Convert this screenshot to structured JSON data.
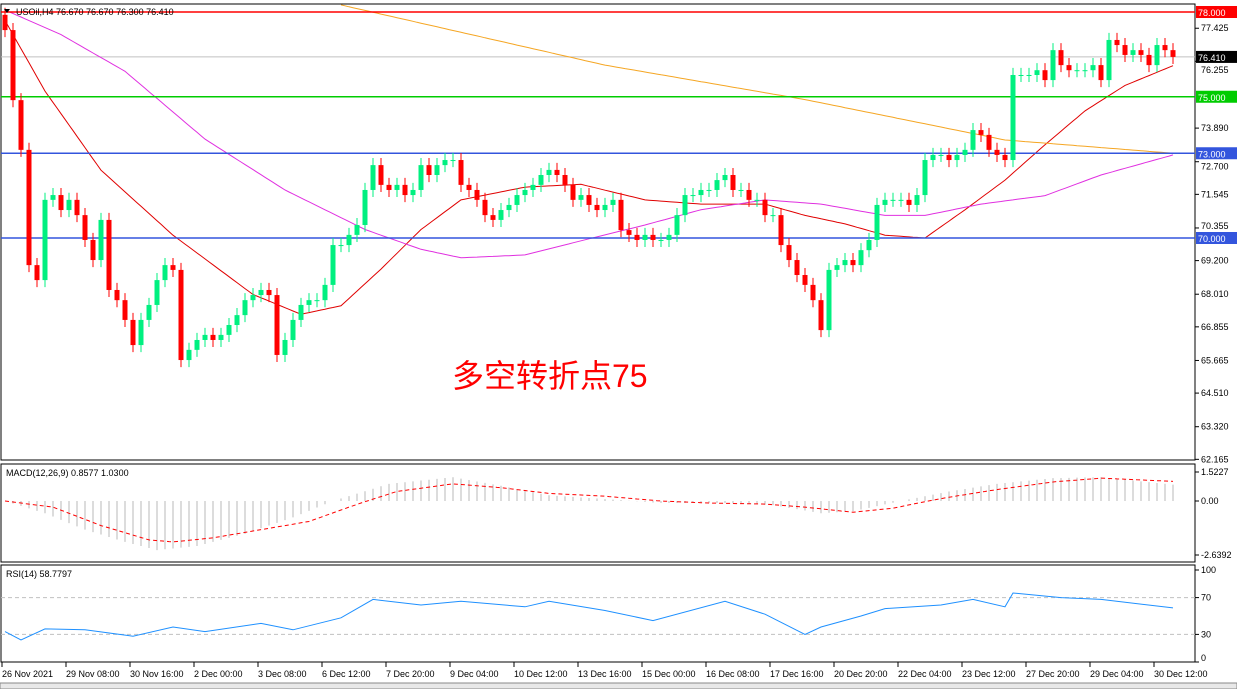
{
  "header": {
    "symbol_label": "USOil,H4  76.670 76.670 76.300 76.410"
  },
  "annotation": "多空转折点75",
  "colors": {
    "bull": "#00f080",
    "bear": "#ff0000",
    "ma_fast": "#e00000",
    "ma_mid": "#e030e0",
    "ma_slow": "#f5a623",
    "level_78": "#ff0000",
    "level_75": "#00cc00",
    "level_73": "#3355dd",
    "level_70": "#3355dd",
    "macd_signal": "#ff0000",
    "macd_hist": "#b8b8b8",
    "rsi": "#1e90ff"
  },
  "chart_data": [
    {
      "type": "candlestick",
      "title": "USOil,H4",
      "ohlc_last": {
        "open": 76.67,
        "high": 76.67,
        "low": 76.3,
        "close": 76.41
      },
      "ylim": [
        62.165,
        78.4
      ],
      "y_ticks": [
        "77.425",
        "76.255",
        "73.890",
        "72.700",
        "71.545",
        "70.355",
        "69.200",
        "68.010",
        "66.855",
        "65.665",
        "64.510",
        "63.320",
        "62.165"
      ],
      "y_tick_values": [
        77.425,
        76.255,
        73.89,
        72.7,
        71.545,
        70.355,
        69.2,
        68.01,
        66.855,
        65.665,
        64.51,
        63.32,
        62.165
      ],
      "price_tag": {
        "label": "76.410",
        "value": 76.41
      },
      "levels": [
        {
          "label": "78.000",
          "value": 78.0,
          "color_key": "level_78"
        },
        {
          "label": "75.000",
          "value": 75.0,
          "color_key": "level_75"
        },
        {
          "label": "73.000",
          "value": 73.0,
          "color_key": "level_73"
        },
        {
          "label": "70.000",
          "value": 70.0,
          "color_key": "level_70"
        }
      ],
      "closes": [
        77.36,
        74.88,
        73.12,
        69.04,
        68.51,
        71.35,
        71.52,
        70.99,
        71.35,
        70.81,
        69.93,
        69.22,
        70.64,
        68.16,
        67.8,
        67.1,
        66.21,
        67.1,
        67.63,
        68.51,
        69.04,
        68.87,
        65.68,
        66.04,
        66.39,
        66.57,
        66.39,
        66.57,
        66.92,
        67.27,
        67.8,
        67.98,
        68.16,
        67.98,
        65.86,
        66.39,
        67.1,
        67.63,
        67.8,
        67.8,
        68.34,
        69.75,
        69.75,
        70.11,
        70.46,
        71.7,
        72.58,
        71.88,
        71.7,
        71.88,
        71.52,
        71.7,
        72.58,
        72.23,
        72.58,
        72.76,
        72.76,
        71.88,
        71.7,
        71.35,
        70.81,
        70.64,
        70.99,
        71.17,
        71.52,
        71.7,
        71.88,
        72.23,
        72.41,
        72.23,
        71.88,
        71.35,
        71.52,
        71.17,
        70.99,
        71.17,
        71.35,
        70.28,
        70.11,
        69.93,
        70.11,
        69.93,
        69.93,
        70.11,
        70.81,
        71.52,
        71.52,
        71.7,
        71.7,
        72.05,
        72.23,
        71.7,
        71.7,
        71.35,
        71.35,
        70.81,
        70.81,
        69.75,
        69.22,
        68.69,
        68.34,
        67.8,
        66.74,
        68.87,
        69.04,
        69.22,
        69.04,
        69.57,
        69.93,
        71.17,
        71.35,
        71.35,
        71.35,
        71.17,
        71.52,
        72.76,
        72.94,
        72.94,
        72.76,
        72.94,
        73.12,
        73.82,
        73.65,
        73.12,
        72.94,
        72.76,
        75.77,
        75.77,
        75.77,
        75.94,
        75.59,
        76.65,
        76.12,
        75.94,
        75.94,
        75.94,
        76.12,
        75.59,
        77.01,
        76.83,
        76.48,
        76.65,
        76.48,
        76.12,
        76.83,
        76.65,
        76.41
      ],
      "first_open": 77.9,
      "moving_averages": [
        {
          "color_key": "ma_fast",
          "points": [
            [
              0,
              77.7
            ],
            [
              5,
              75.2
            ],
            [
              12,
              72.4
            ],
            [
              21,
              70.1
            ],
            [
              31,
              68.0
            ],
            [
              37,
              67.3
            ],
            [
              42,
              67.6
            ],
            [
              47,
              68.9
            ],
            [
              52,
              70.3
            ],
            [
              57,
              71.35
            ],
            [
              65,
              71.8
            ],
            [
              72,
              71.9
            ],
            [
              80,
              71.35
            ],
            [
              87,
              71.2
            ],
            [
              95,
              71.2
            ],
            [
              100,
              70.8
            ],
            [
              105,
              70.5
            ],
            [
              110,
              70.1
            ],
            [
              115,
              70.0
            ],
            [
              120,
              71.0
            ],
            [
              125,
              72.05
            ],
            [
              130,
              73.3
            ],
            [
              135,
              74.5
            ],
            [
              140,
              75.4
            ],
            [
              146,
              76.1
            ]
          ]
        },
        {
          "color_key": "ma_mid",
          "points": [
            [
              0,
              78.07
            ],
            [
              7,
              77.2
            ],
            [
              15,
              75.9
            ],
            [
              25,
              73.5
            ],
            [
              35,
              71.7
            ],
            [
              45,
              70.3
            ],
            [
              52,
              69.6
            ],
            [
              57,
              69.3
            ],
            [
              65,
              69.4
            ],
            [
              72,
              69.9
            ],
            [
              80,
              70.46
            ],
            [
              87,
              71.0
            ],
            [
              95,
              71.35
            ],
            [
              102,
              71.2
            ],
            [
              110,
              70.8
            ],
            [
              115,
              70.8
            ],
            [
              122,
              71.2
            ],
            [
              130,
              71.5
            ],
            [
              137,
              72.23
            ],
            [
              146,
              72.94
            ]
          ]
        },
        {
          "color_key": "ma_slow",
          "points": [
            [
              42,
              78.25
            ],
            [
              75,
              76.12
            ],
            [
              100,
              74.9
            ],
            [
              125,
              73.47
            ],
            [
              146,
              73.0
            ]
          ]
        }
      ],
      "x_ticks": [
        "26 Nov 2021",
        "29 Nov 08:00",
        "30 Nov 16:00",
        "2 Dec 00:00",
        "3 Dec 08:00",
        "6 Dec 12:00",
        "7 Dec 20:00",
        "9 Dec 04:00",
        "10 Dec 12:00",
        "13 Dec 16:00",
        "15 Dec 00:00",
        "16 Dec 08:00",
        "17 Dec 16:00",
        "20 Dec 20:00",
        "22 Dec 04:00",
        "23 Dec 12:00",
        "27 Dec 20:00",
        "29 Dec 04:00",
        "30 Dec 12:00"
      ],
      "x_tick_bars": [
        0,
        8,
        16,
        24,
        32,
        40,
        48,
        56,
        64,
        72,
        80,
        88,
        96,
        104,
        112,
        120,
        128,
        136,
        144
      ]
    },
    {
      "type": "bar+line",
      "title": "MACD(12,26,9) 0.8577 1.0300",
      "ylim": [
        -2.6392,
        1.5227
      ],
      "y_ticks": [
        "1.5227",
        "0.00",
        "-2.6392"
      ],
      "y_tick_values": [
        1.5227,
        0,
        -2.6392
      ],
      "histogram_points": [
        [
          0,
          0
        ],
        [
          5,
          -0.6
        ],
        [
          10,
          -1.4
        ],
        [
          15,
          -2.0
        ],
        [
          19,
          -2.4
        ],
        [
          24,
          -2.2
        ],
        [
          30,
          -1.6
        ],
        [
          36,
          -0.8
        ],
        [
          41,
          0
        ],
        [
          48,
          0.9
        ],
        [
          56,
          1.25
        ],
        [
          62,
          0.8
        ],
        [
          68,
          0.3
        ],
        [
          75,
          0.1
        ],
        [
          82,
          -0.1
        ],
        [
          90,
          -0.1
        ],
        [
          96,
          -0.2
        ],
        [
          102,
          -0.6
        ],
        [
          106,
          -0.5
        ],
        [
          112,
          0
        ],
        [
          118,
          0.5
        ],
        [
          124,
          0.9
        ],
        [
          131,
          1.2
        ],
        [
          137,
          1.25
        ],
        [
          146,
          0.86
        ]
      ],
      "signal_points": [
        [
          0,
          0
        ],
        [
          6,
          -0.3
        ],
        [
          12,
          -1.2
        ],
        [
          18,
          -1.9
        ],
        [
          21,
          -2.0
        ],
        [
          26,
          -1.8
        ],
        [
          32,
          -1.4
        ],
        [
          38,
          -1.0
        ],
        [
          43,
          -0.3
        ],
        [
          49,
          0.5
        ],
        [
          56,
          0.9
        ],
        [
          62,
          0.7
        ],
        [
          68,
          0.4
        ],
        [
          75,
          0.25
        ],
        [
          82,
          0.0
        ],
        [
          88,
          -0.1
        ],
        [
          95,
          -0.15
        ],
        [
          100,
          -0.3
        ],
        [
          106,
          -0.55
        ],
        [
          111,
          -0.35
        ],
        [
          118,
          0.2
        ],
        [
          124,
          0.6
        ],
        [
          131,
          1.0
        ],
        [
          137,
          1.2
        ],
        [
          146,
          1.03
        ]
      ]
    },
    {
      "type": "line",
      "title": "RSI(14) 58.7797",
      "ylim": [
        0,
        100
      ],
      "y_ticks": [
        "100",
        "70",
        "30",
        "0"
      ],
      "y_tick_values": [
        100,
        70,
        30,
        0
      ],
      "levels": [
        70,
        30
      ],
      "points": [
        [
          0,
          33
        ],
        [
          2,
          24
        ],
        [
          5,
          36
        ],
        [
          10,
          35
        ],
        [
          16,
          28
        ],
        [
          21,
          38
        ],
        [
          25,
          33
        ],
        [
          32,
          42
        ],
        [
          36,
          35
        ],
        [
          42,
          48
        ],
        [
          46,
          68
        ],
        [
          52,
          62
        ],
        [
          57,
          66
        ],
        [
          65,
          60
        ],
        [
          68,
          66
        ],
        [
          75,
          56
        ],
        [
          81,
          45
        ],
        [
          90,
          66
        ],
        [
          95,
          52
        ],
        [
          100,
          30
        ],
        [
          102,
          38
        ],
        [
          107,
          50
        ],
        [
          110,
          58
        ],
        [
          117,
          62
        ],
        [
          121,
          68
        ],
        [
          125,
          60
        ],
        [
          126,
          75
        ],
        [
          132,
          70
        ],
        [
          137,
          68
        ],
        [
          146,
          58.78
        ]
      ]
    }
  ]
}
